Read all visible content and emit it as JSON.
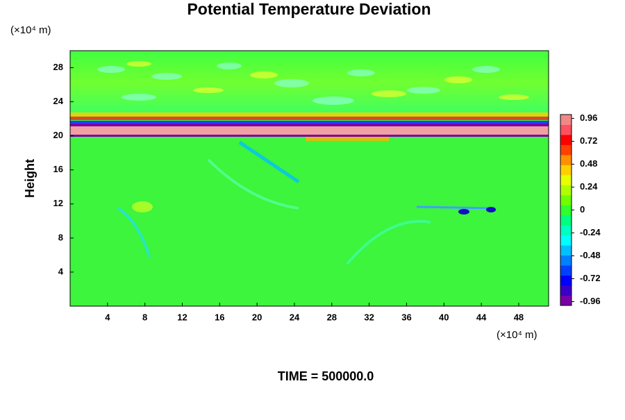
{
  "chart_data": {
    "type": "contour",
    "title": "Potential Temperature Deviation",
    "y_label": "Height",
    "x_unit": "(×10⁴ m)",
    "y_unit": "(×10⁴ m)",
    "footer": "TIME = 500000.0",
    "xlim": [
      0,
      51.2
    ],
    "xticks": [
      4,
      8,
      12,
      16,
      20,
      24,
      28,
      32,
      36,
      40,
      44,
      48
    ],
    "ylim": [
      0,
      30
    ],
    "yticks": [
      4,
      8,
      12,
      16,
      20,
      24,
      28
    ],
    "clim": [
      -1,
      1
    ],
    "cticks": [
      0.96,
      0.72,
      0.48,
      0.24,
      0,
      -0.24,
      -0.48,
      -0.72,
      -0.96
    ],
    "colormap": [
      "#7a00a8",
      "#3a00c8",
      "#0000ff",
      "#0040ff",
      "#0080ff",
      "#00c0ff",
      "#00ffff",
      "#00ffc0",
      "#00ff80",
      "#30ff30",
      "#70ff00",
      "#b0ff00",
      "#e8ff00",
      "#ffd000",
      "#ff9000",
      "#ff4000",
      "#ff0000",
      "#ff5060",
      "#f08888"
    ]
  }
}
